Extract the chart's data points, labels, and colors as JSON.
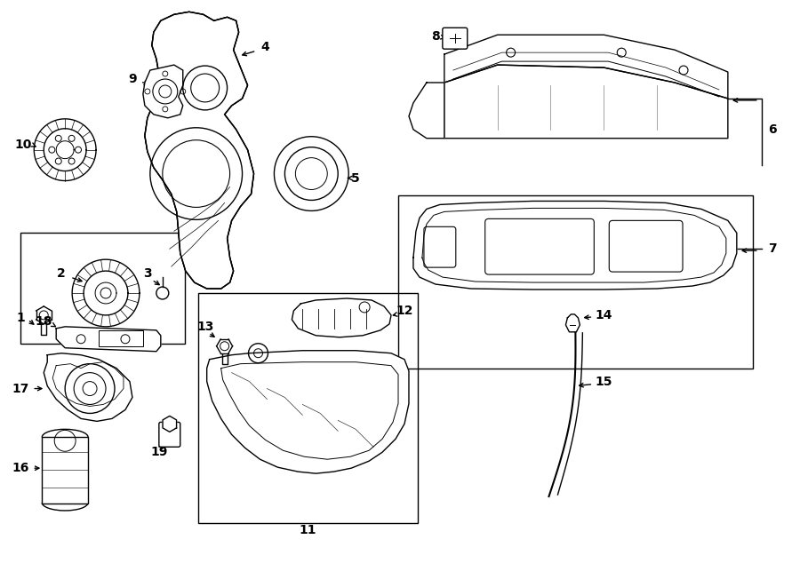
{
  "bg_color": "#ffffff",
  "line_color": "#000000",
  "figsize": [
    9.0,
    6.61
  ],
  "dpi": 100,
  "lw": 1.0
}
